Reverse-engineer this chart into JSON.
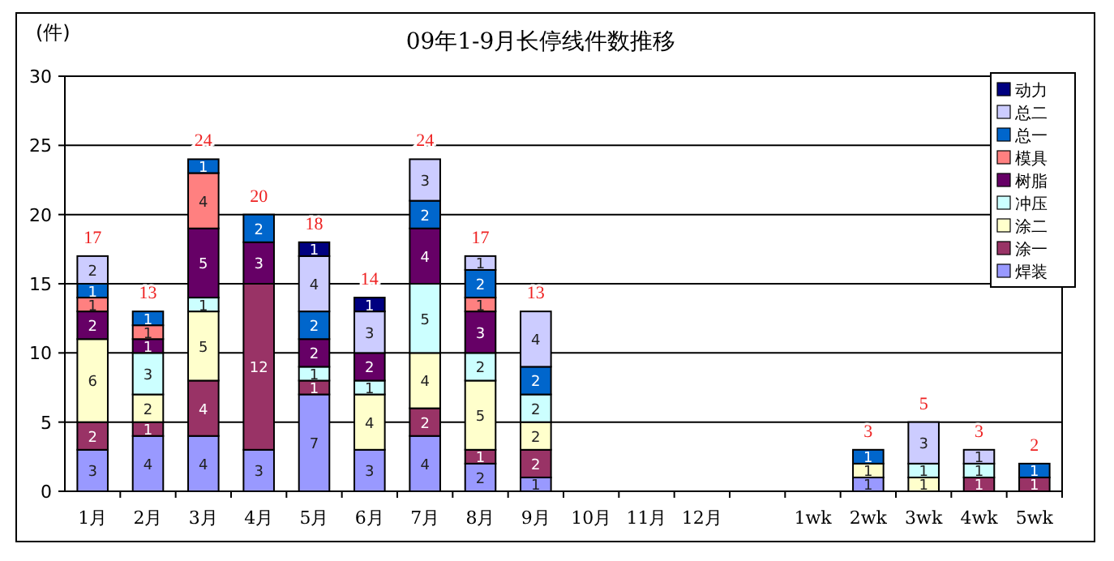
{
  "chart_data": {
    "type": "bar",
    "title": "09年1-9月长停线件数推移",
    "ylabel": "(件)",
    "stacked": true,
    "categories": [
      "1月",
      "2月",
      "3月",
      "4月",
      "5月",
      "6月",
      "7月",
      "8月",
      "9月",
      "10月",
      "11月",
      "12月",
      null,
      "1wk",
      "2wk",
      "3wk",
      "4wk",
      "5wk"
    ],
    "series": [
      {
        "name": "焊装",
        "color": "#9999ff",
        "values": [
          3,
          4,
          4,
          3,
          7,
          3,
          4,
          2,
          1,
          null,
          null,
          null,
          null,
          null,
          1,
          null,
          null,
          null
        ]
      },
      {
        "name": "涂一",
        "color": "#993366",
        "values": [
          2,
          1,
          4,
          12,
          1,
          null,
          2,
          1,
          2,
          null,
          null,
          null,
          null,
          null,
          null,
          null,
          1,
          1
        ]
      },
      {
        "name": "涂二",
        "color": "#ffffcc",
        "values": [
          6,
          2,
          5,
          null,
          null,
          4,
          4,
          5,
          2,
          null,
          null,
          null,
          null,
          null,
          1,
          1,
          null,
          null
        ]
      },
      {
        "name": "冲压",
        "color": "#ccffff",
        "values": [
          null,
          3,
          1,
          null,
          1,
          1,
          5,
          2,
          2,
          null,
          null,
          null,
          null,
          null,
          null,
          1,
          1,
          null
        ]
      },
      {
        "name": "树脂",
        "color": "#660066",
        "values": [
          2,
          1,
          5,
          3,
          2,
          2,
          4,
          3,
          null,
          null,
          null,
          null,
          null,
          null,
          null,
          null,
          null,
          null
        ]
      },
      {
        "name": "模具",
        "color": "#ff8080",
        "values": [
          1,
          1,
          4,
          null,
          null,
          null,
          null,
          1,
          null,
          null,
          null,
          null,
          null,
          null,
          null,
          null,
          null,
          null
        ]
      },
      {
        "name": "总一",
        "color": "#0066cc",
        "values": [
          1,
          1,
          1,
          2,
          2,
          null,
          2,
          2,
          2,
          null,
          null,
          null,
          null,
          null,
          1,
          null,
          null,
          1
        ]
      },
      {
        "name": "总二",
        "color": "#ccccff",
        "values": [
          2,
          null,
          null,
          null,
          4,
          3,
          3,
          1,
          4,
          null,
          null,
          null,
          null,
          null,
          null,
          3,
          1,
          null
        ]
      },
      {
        "name": "动力",
        "color": "#000080",
        "values": [
          null,
          null,
          null,
          null,
          1,
          1,
          null,
          null,
          null,
          null,
          null,
          null,
          null,
          null,
          null,
          null,
          null,
          null
        ]
      }
    ],
    "totals": [
      "17",
      "13",
      "24",
      "20",
      "18",
      "14",
      "24",
      "17",
      "13",
      null,
      null,
      null,
      null,
      null,
      "3",
      "5",
      "3",
      "2"
    ],
    "data_labels": true,
    "ylim": [
      0,
      30
    ],
    "yticks": [
      0,
      5,
      10,
      15,
      20,
      25,
      30
    ],
    "grid": "y",
    "legend": "top right"
  }
}
